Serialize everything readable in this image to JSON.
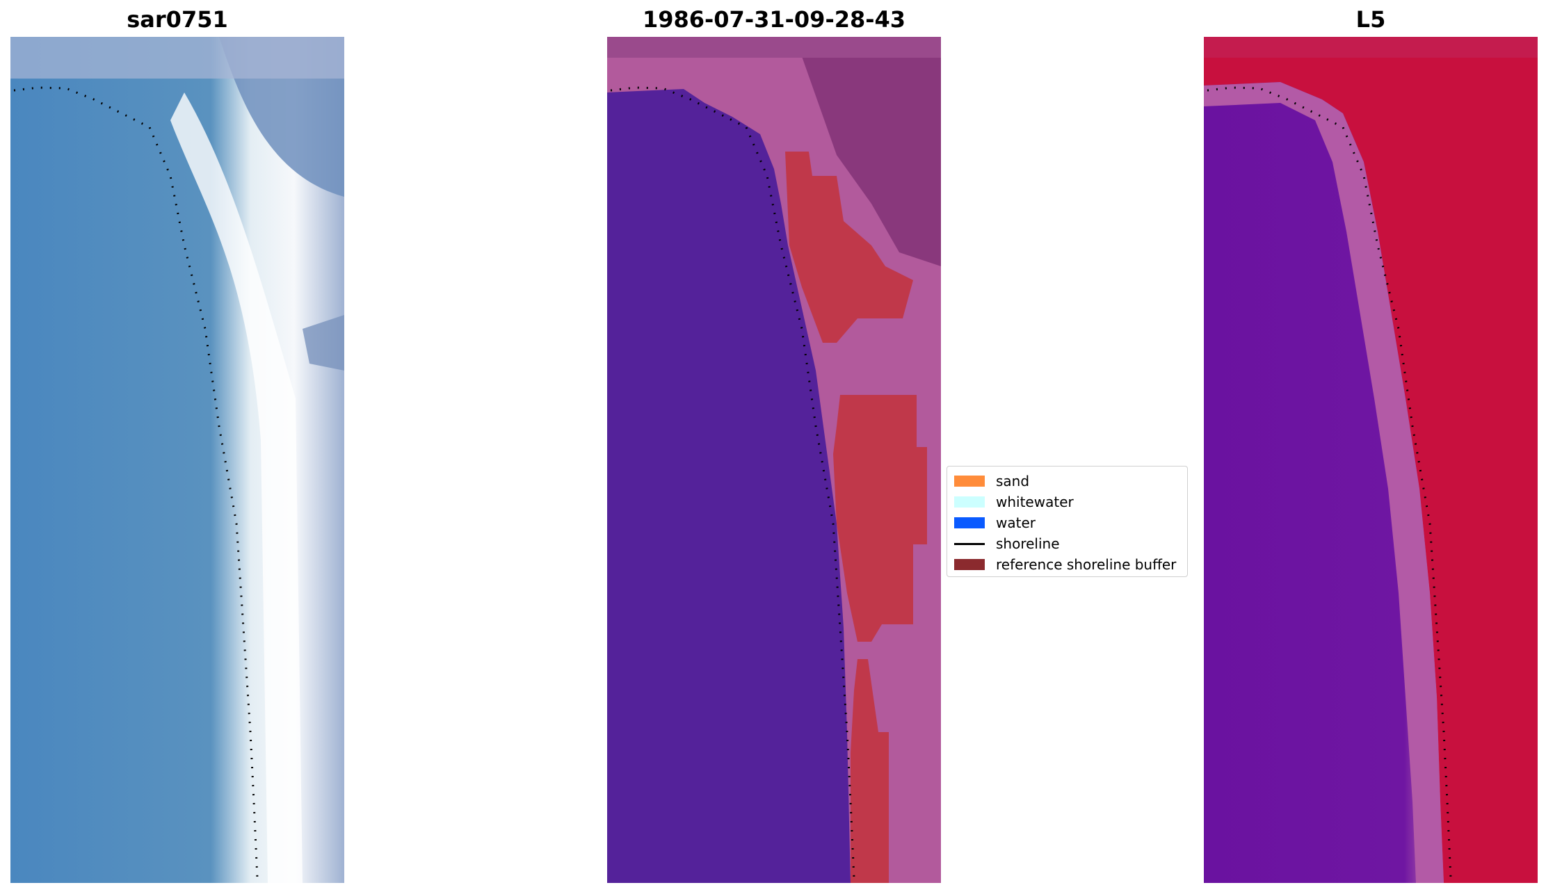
{
  "panels": [
    {
      "title": "sar0751",
      "kind": "rgb"
    },
    {
      "title": "1986-07-31-09-28-43",
      "kind": "classified"
    },
    {
      "title": "L5",
      "kind": "index"
    }
  ],
  "legend": {
    "items": [
      {
        "label": "sand",
        "color": "#ff8c3a",
        "type": "patch"
      },
      {
        "label": "whitewater",
        "color": "#ccffff",
        "type": "patch"
      },
      {
        "label": "water",
        "color": "#0a5aff",
        "type": "patch"
      },
      {
        "label": "shoreline",
        "color": "#000000",
        "type": "line"
      },
      {
        "label": "reference shoreline buffer",
        "color": "#8b2a2e",
        "type": "patch"
      }
    ]
  },
  "colors": {
    "rgb_water": "#4a87bf",
    "rgb_surf": "#f4f6fa",
    "rgb_land": "#6f8fbd",
    "classified_water": "#54229a",
    "classified_buffer": "#c0384a",
    "classified_land": "#b25a9c",
    "index_water": "#6a12a0",
    "index_land": "#c8103e",
    "shoreline": "#000000"
  }
}
